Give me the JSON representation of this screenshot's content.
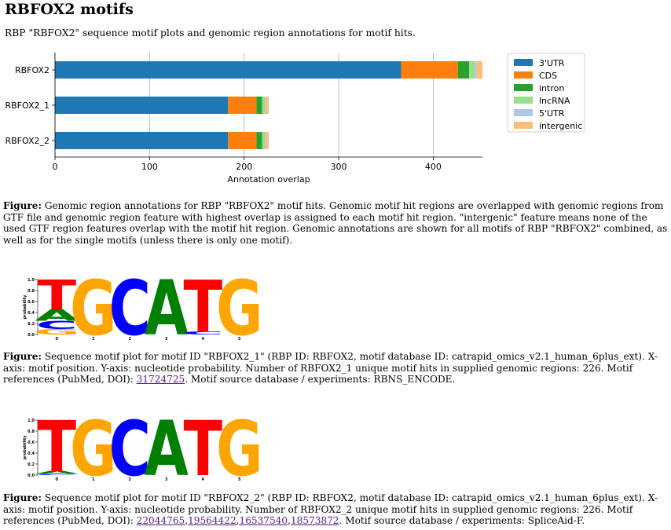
{
  "page": {
    "title": "RBFOX2 motifs",
    "intro": "RBP \"RBFOX2\" sequence motif plots and genomic region annotations for motif hits."
  },
  "chart_data": {
    "type": "bar",
    "orientation": "horizontal",
    "stacked": true,
    "categories": [
      "RBFOX2",
      "RBFOX2_1",
      "RBFOX2_2"
    ],
    "series": [
      {
        "name": "3'UTR",
        "color": "#1f77b4",
        "values": [
          366,
          183,
          183
        ]
      },
      {
        "name": "CDS",
        "color": "#ff7f0e",
        "values": [
          60,
          30,
          30
        ]
      },
      {
        "name": "intron",
        "color": "#2ca02c",
        "values": [
          12,
          6,
          6
        ]
      },
      {
        "name": "lncRNA",
        "color": "#98df8a",
        "values": [
          6,
          3,
          3
        ]
      },
      {
        "name": "5'UTR",
        "color": "#aec7e8",
        "values": [
          2,
          1,
          1
        ]
      },
      {
        "name": "intergenic",
        "color": "#ffbb78",
        "values": [
          6,
          3,
          3
        ]
      }
    ],
    "xlabel": "Annotation overlap",
    "xlim": [
      0,
      452
    ],
    "xticks": [
      0,
      100,
      200,
      300,
      400
    ],
    "grid": "x",
    "legend": "right"
  },
  "caption1": {
    "prefix": "Figure:",
    "text": " Genomic region annotations for RBP \"RBFOX2\" motif hits. Genomic motif hit regions are overlapped with genomic regions from GTF file and genomic region feature with highest overlap is assigned to each motif hit region. \"intergenic\" feature means none of the used GTF region features overlap with the motif hit region. Genomic annotations are shown for all motifs of RBP \"RBFOX2\" combined, as well as for the single motifs (unless there is only one motif)."
  },
  "logo_axis": {
    "ylabel": "probability",
    "yticks": [
      "0.0",
      "0.2",
      "0.4",
      "0.6",
      "0.8",
      "1.0"
    ],
    "xticks": [
      "0",
      "1",
      "2",
      "3",
      "4",
      "5"
    ]
  },
  "motif_logos": [
    {
      "positions": [
        [
          {
            "base": "T",
            "p": 0.55
          },
          {
            "base": "A",
            "p": 0.2
          },
          {
            "base": "C",
            "p": 0.15
          },
          {
            "base": "G",
            "p": 0.1
          }
        ],
        [
          {
            "base": "G",
            "p": 1.0
          }
        ],
        [
          {
            "base": "C",
            "p": 1.0
          }
        ],
        [
          {
            "base": "A",
            "p": 1.0
          }
        ],
        [
          {
            "base": "T",
            "p": 0.95
          },
          {
            "base": "C",
            "p": 0.05
          }
        ],
        [
          {
            "base": "G",
            "p": 1.0
          }
        ]
      ]
    },
    {
      "positions": [
        [
          {
            "base": "T",
            "p": 0.93
          },
          {
            "base": "A",
            "p": 0.05
          },
          {
            "base": "C",
            "p": 0.02
          }
        ],
        [
          {
            "base": "G",
            "p": 1.0
          }
        ],
        [
          {
            "base": "C",
            "p": 1.0
          }
        ],
        [
          {
            "base": "A",
            "p": 1.0
          }
        ],
        [
          {
            "base": "T",
            "p": 1.0
          }
        ],
        [
          {
            "base": "G",
            "p": 1.0
          }
        ]
      ]
    }
  ],
  "base_colors": {
    "A": "#008000",
    "C": "#0000ff",
    "G": "#ffa500",
    "T": "#ff0000"
  },
  "caption2": {
    "prefix": "Figure:",
    "text": " Sequence motif plot for motif ID \"RBFOX2_1\" (RBP ID: RBFOX2, motif database ID: catrapid_omics_v2.1_human_6plus_ext). X-axis: motif position. Y-axis: nucleotide probability. Number of RBFOX2_1 unique motif hits in supplied genomic regions: 226. Motif references (PubMed, DOI): ",
    "refs": [
      "31724725"
    ],
    "tail": ". Motif source database / experiments: RBNS_ENCODE."
  },
  "caption3": {
    "prefix": "Figure:",
    "text": " Sequence motif plot for motif ID \"RBFOX2_2\" (RBP ID: RBFOX2, motif database ID: catrapid_omics_v2.1_human_6plus_ext). X-axis: motif position. Y-axis: nucleotide probability. Number of RBFOX2_2 unique motif hits in supplied genomic regions: 226. Motif references (PubMed, DOI): ",
    "refs": [
      "22044765",
      "19564422",
      "16537540",
      "18573872"
    ],
    "tail": ". Motif source database / experiments: SpliceAid-F."
  }
}
